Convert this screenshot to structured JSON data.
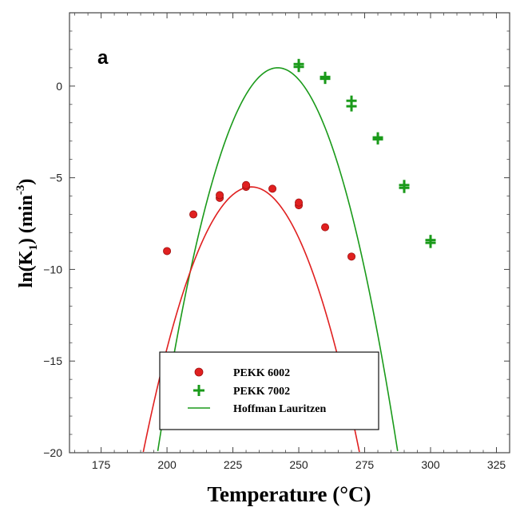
{
  "chart_data": {
    "type": "scatter",
    "panel_label": "a",
    "xlabel": "Temperature (°C)",
    "ylabel_main": "ln(K",
    "ylabel_sub": "1",
    "ylabel_tail": ") (min",
    "ylabel_sup": "-3",
    "ylabel_end": ")",
    "xlim": [
      163,
      330
    ],
    "ylim": [
      -20,
      4
    ],
    "xticks": [
      175,
      200,
      225,
      250,
      275,
      300,
      325
    ],
    "yticks": [
      0,
      -5,
      -10,
      -15,
      -20
    ],
    "grid": false,
    "legend_position": "bottom-center",
    "series": [
      {
        "name": "PEKK 6002",
        "marker": "circle",
        "color": "#e02020",
        "points": [
          {
            "x": 200,
            "y": -9.0
          },
          {
            "x": 210,
            "y": -7.0
          },
          {
            "x": 220,
            "y": -6.1
          },
          {
            "x": 220,
            "y": -5.95
          },
          {
            "x": 230,
            "y": -5.5
          },
          {
            "x": 230,
            "y": -5.4
          },
          {
            "x": 240,
            "y": -5.6
          },
          {
            "x": 250,
            "y": -6.5
          },
          {
            "x": 250,
            "y": -6.35
          },
          {
            "x": 260,
            "y": -7.7
          },
          {
            "x": 270,
            "y": -9.3
          }
        ]
      },
      {
        "name": "PEKK 7002",
        "marker": "plus",
        "color": "#1a9a1a",
        "points": [
          {
            "x": 250,
            "y": 1.2
          },
          {
            "x": 250,
            "y": 1.05
          },
          {
            "x": 260,
            "y": 0.5
          },
          {
            "x": 260,
            "y": 0.4
          },
          {
            "x": 270,
            "y": -0.8
          },
          {
            "x": 270,
            "y": -1.1
          },
          {
            "x": 280,
            "y": -2.8
          },
          {
            "x": 280,
            "y": -2.9
          },
          {
            "x": 290,
            "y": -5.4
          },
          {
            "x": 290,
            "y": -5.55
          },
          {
            "x": 300,
            "y": -8.4
          },
          {
            "x": 300,
            "y": -8.55
          }
        ]
      }
    ],
    "fits": [
      {
        "name": "Hoffman Lauritzen",
        "color": "#1a9a1a",
        "peak_x": 242,
        "peak_y": 1.0,
        "curvature": 0.0101,
        "x_range": [
          166,
          318
        ]
      },
      {
        "name": "",
        "color": "#e02020",
        "peak_x": 232,
        "peak_y": -5.5,
        "curvature": 0.0086,
        "x_range": [
          178,
          291
        ]
      }
    ]
  }
}
